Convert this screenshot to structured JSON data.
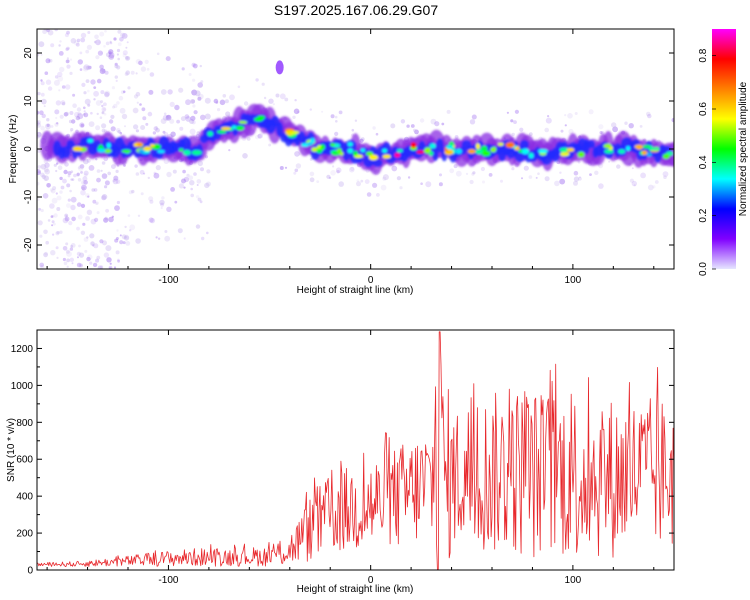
{
  "title": "S197.2025.167.06.29.G07",
  "chart_data": [
    {
      "type": "heatmap",
      "xlabel": "Height of straight line (km)",
      "ylabel": "Frequency (Hz)",
      "xlim": [
        -165,
        150
      ],
      "ylim": [
        -25,
        25
      ],
      "x_ticks": [
        -100,
        0,
        100
      ],
      "y_ticks": [
        20,
        10,
        0,
        -10,
        -20
      ],
      "colorbar": {
        "label": "Normalized spectral amplitude",
        "range": [
          0.0,
          0.9
        ],
        "ticks": [
          0.0,
          0.2,
          0.4,
          0.6,
          0.8
        ],
        "colors": [
          "#e6e6ff",
          "#8000ff",
          "#0000ff",
          "#00ffff",
          "#00ff00",
          "#ffff00",
          "#ff8000",
          "#ff0000",
          "#ff00ff"
        ]
      },
      "ridge": {
        "x": [
          -160,
          -140,
          -120,
          -100,
          -85,
          -75,
          -65,
          -55,
          -45,
          -35,
          -25,
          -10,
          0,
          10,
          20,
          35,
          50,
          70,
          90,
          110,
          130,
          150
        ],
        "y": [
          0,
          1,
          0,
          0,
          0,
          4,
          5,
          7,
          4,
          2,
          0,
          0,
          -2,
          -1,
          0,
          0,
          0,
          0,
          -1,
          0,
          0,
          -1
        ]
      }
    },
    {
      "type": "line",
      "xlabel": "Height of straight line (km)",
      "ylabel": "SNR (10 * v/v)",
      "xlim": [
        -165,
        150
      ],
      "ylim": [
        0,
        1300
      ],
      "x_ticks": [
        -100,
        0,
        100
      ],
      "y_ticks": [
        0,
        200,
        400,
        600,
        800,
        1000,
        1200
      ],
      "color": "#e8282c",
      "series": [
        {
          "x": [
            -165,
            -145,
            -125,
            -105,
            -85,
            -65,
            -50,
            -40,
            -30,
            -20,
            -10,
            0,
            10,
            20,
            30,
            34,
            40,
            50,
            60,
            70,
            80,
            90,
            100,
            110,
            120,
            130,
            140,
            150
          ],
          "y_mid": [
            30,
            32,
            45,
            60,
            70,
            70,
            75,
            110,
            220,
            300,
            330,
            350,
            380,
            420,
            480,
            480,
            500,
            520,
            520,
            540,
            520,
            520,
            520,
            500,
            500,
            520,
            520,
            520
          ],
          "y_amp": [
            10,
            15,
            25,
            40,
            50,
            50,
            55,
            90,
            180,
            220,
            240,
            260,
            280,
            300,
            330,
            830,
            380,
            420,
            440,
            460,
            470,
            460,
            460,
            440,
            440,
            420,
            420,
            420
          ]
        }
      ]
    }
  ]
}
